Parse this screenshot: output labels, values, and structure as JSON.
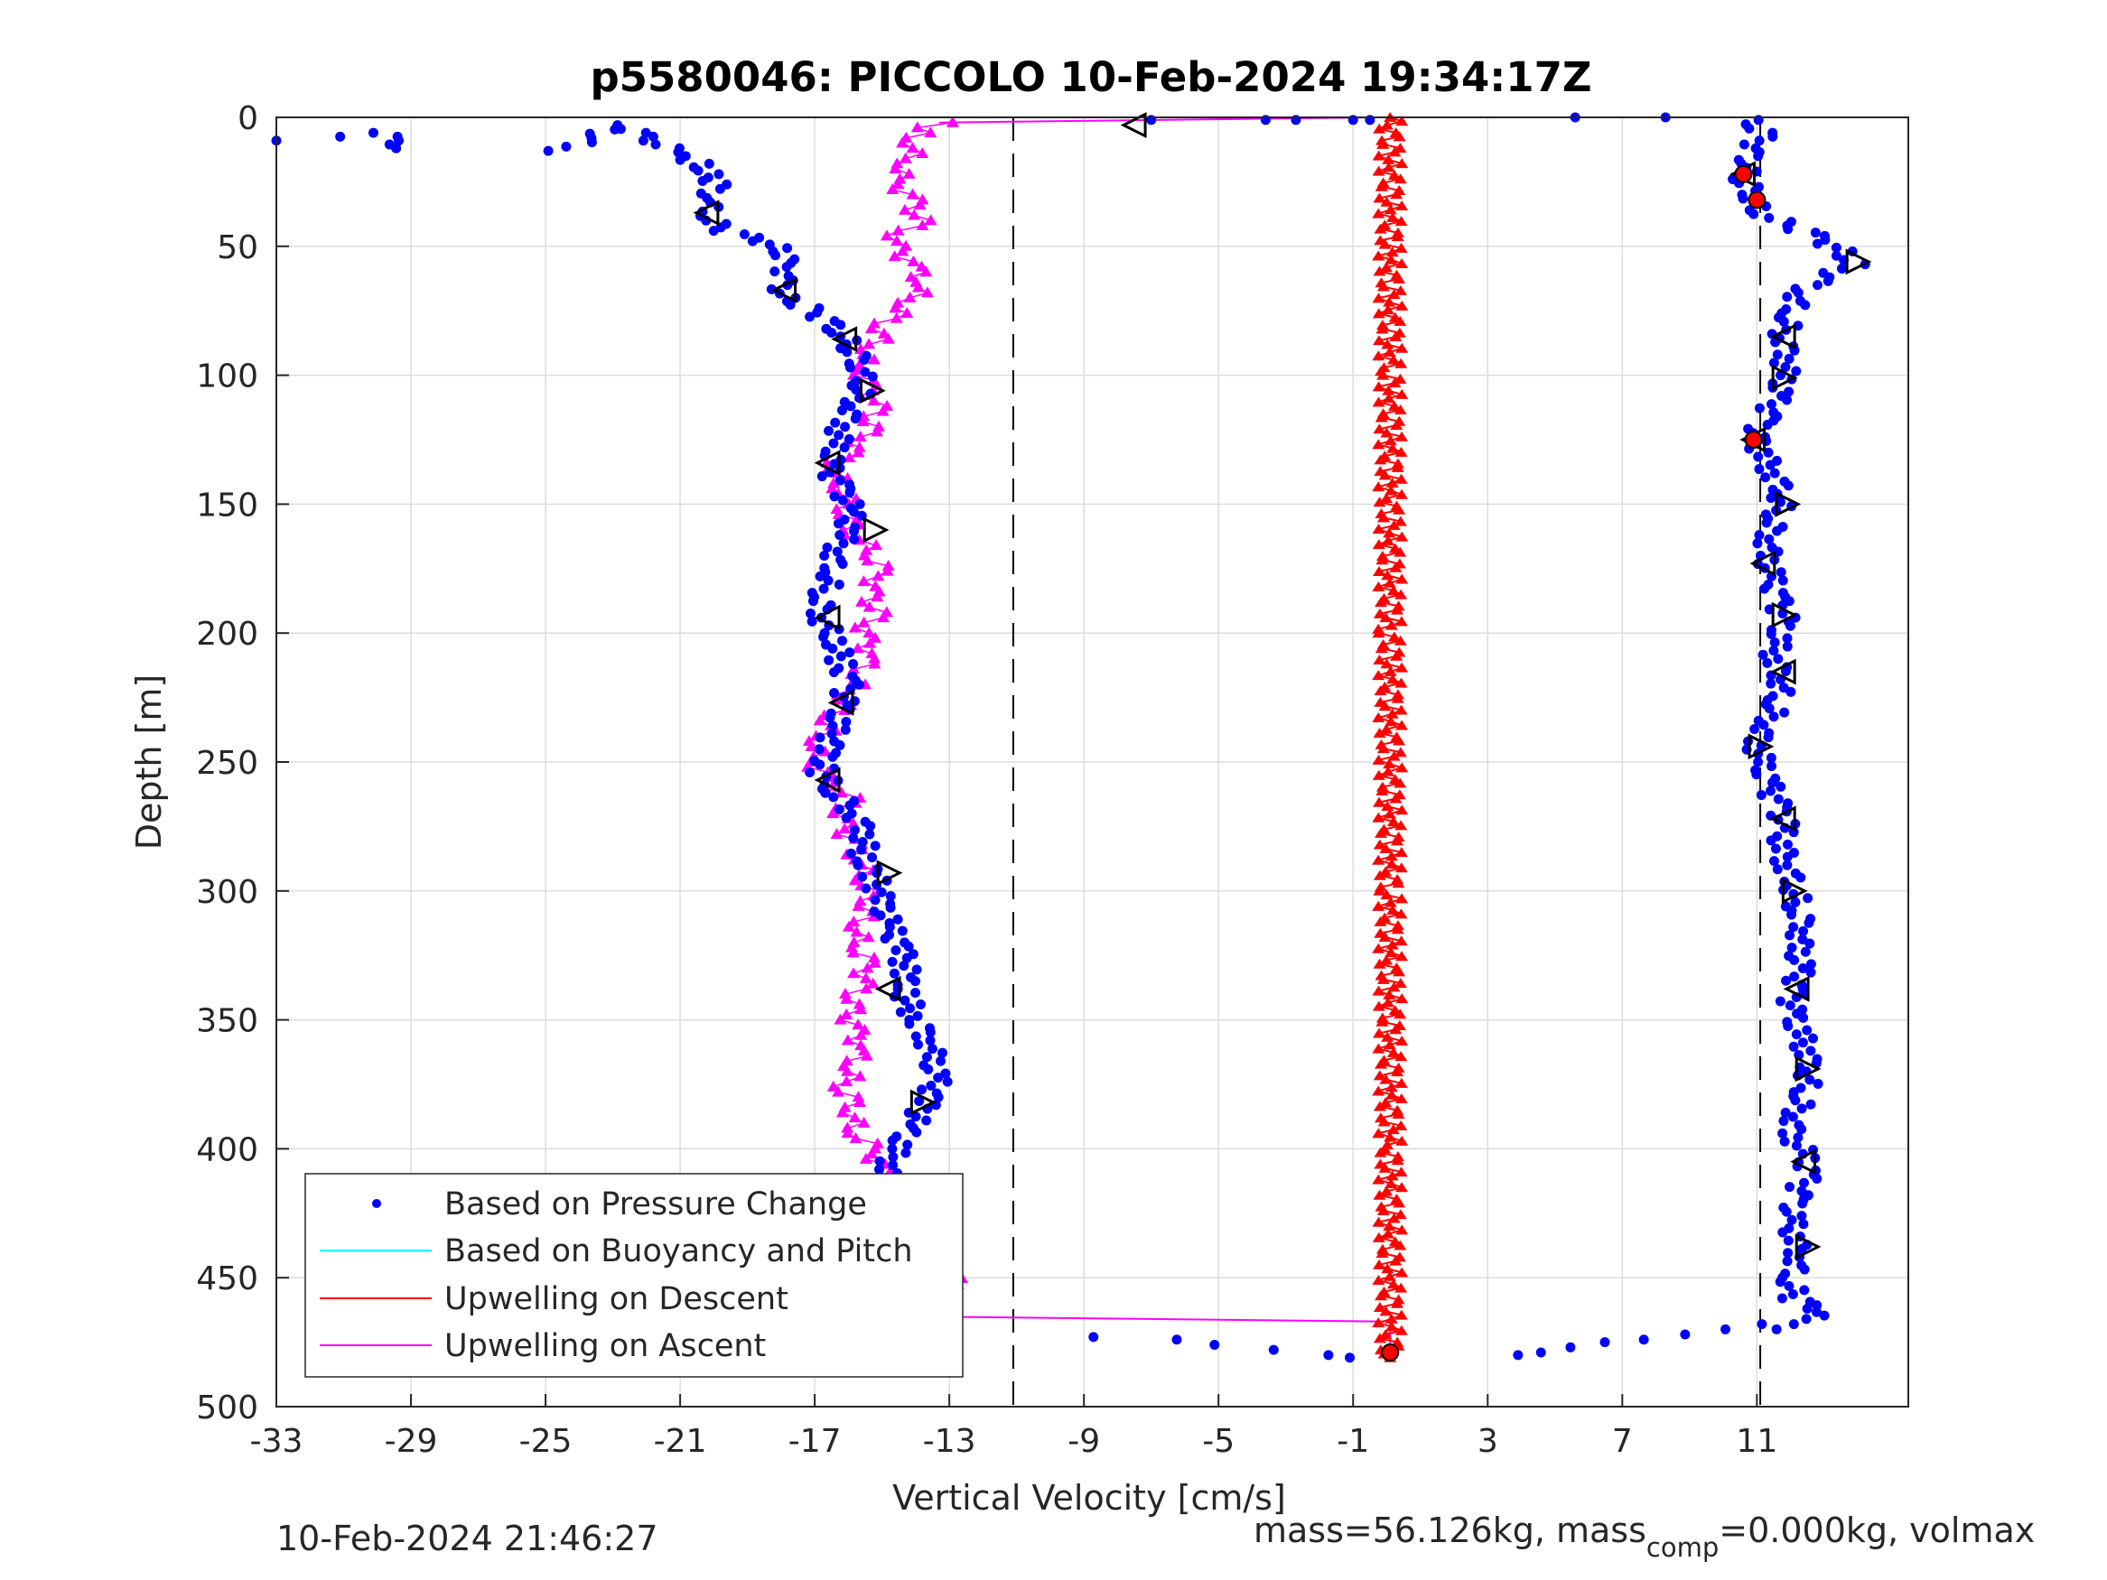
{
  "chart_data": {
    "type": "scatter",
    "title": "p5580046: PICCOLO 10-Feb-2024 19:34:17Z",
    "xlabel": "Vertical Velocity [cm/s]",
    "ylabel": "Depth [m]",
    "xlim": [
      -33,
      15.5
    ],
    "ylim": [
      0,
      500
    ],
    "y_reversed": true,
    "grid": true,
    "x_ticks": [
      "-33",
      "-29",
      "-25",
      "-21",
      "-17",
      "-13",
      "-9",
      "-5",
      "-1",
      "3",
      "7",
      "11"
    ],
    "x_tick_values": [
      -33,
      -29,
      -25,
      -21,
      -17,
      -13,
      -9,
      -5,
      -1,
      3,
      7,
      11
    ],
    "y_ticks": [
      "0",
      "50",
      "100",
      "150",
      "200",
      "250",
      "300",
      "350",
      "400",
      "450",
      "500"
    ],
    "y_tick_values": [
      0,
      50,
      100,
      150,
      200,
      250,
      300,
      350,
      400,
      450,
      500
    ],
    "legend_position": "bottom-left",
    "reference_lines_x": [
      -11.1,
      11.1
    ],
    "series": [
      {
        "name": "Based on Pressure Change",
        "color": "#0000ff",
        "marker": "dot",
        "descent": [
          [
            -33,
            9
          ],
          [
            -29.9,
            6
          ],
          [
            -29.1,
            12
          ],
          [
            -24.6,
            13
          ],
          [
            -22.7,
            3
          ],
          [
            -20.9,
            15
          ],
          [
            -20.4,
            18
          ],
          [
            -20.2,
            22
          ],
          [
            -19.9,
            26
          ],
          [
            -20.2,
            33
          ],
          [
            -20.1,
            40
          ],
          [
            -19.7,
            44
          ],
          [
            -18.5,
            48
          ],
          [
            -18.0,
            52
          ],
          [
            -17.8,
            58
          ],
          [
            -18.0,
            65
          ],
          [
            -17.9,
            70
          ],
          [
            -17.2,
            74
          ],
          [
            -16.6,
            79
          ],
          [
            -16.2,
            85
          ],
          [
            -15.8,
            91
          ],
          [
            -15.6,
            97
          ],
          [
            -15.6,
            104
          ],
          [
            -15.8,
            112
          ],
          [
            -16.2,
            120
          ],
          [
            -16.4,
            128
          ],
          [
            -16.6,
            136
          ],
          [
            -16.2,
            144
          ],
          [
            -15.9,
            153
          ],
          [
            -16.1,
            162
          ],
          [
            -16.4,
            170
          ],
          [
            -16.5,
            178
          ],
          [
            -16.8,
            186
          ],
          [
            -16.8,
            194
          ],
          [
            -16.4,
            203
          ],
          [
            -16.2,
            212
          ],
          [
            -16.0,
            220
          ],
          [
            -16.2,
            228
          ],
          [
            -16.4,
            236
          ],
          [
            -16.6,
            245
          ],
          [
            -16.8,
            254
          ],
          [
            -16.4,
            262
          ],
          [
            -15.8,
            270
          ],
          [
            -15.5,
            278
          ],
          [
            -15.6,
            287
          ],
          [
            -15.2,
            296
          ],
          [
            -15.0,
            305
          ],
          [
            -14.8,
            314
          ],
          [
            -14.4,
            323
          ],
          [
            -14.3,
            332
          ],
          [
            -14.3,
            341
          ],
          [
            -14.0,
            350
          ],
          [
            -13.6,
            358
          ],
          [
            -13.5,
            366
          ],
          [
            -13.4,
            374
          ],
          [
            -13.7,
            383
          ],
          [
            -14.2,
            392
          ],
          [
            -14.6,
            400
          ],
          [
            -14.8,
            408
          ],
          [
            -14.7,
            417
          ],
          [
            -14.5,
            425
          ],
          [
            -14.3,
            434
          ],
          [
            -14.2,
            443
          ],
          [
            -14.3,
            452
          ],
          [
            -14.6,
            461
          ],
          [
            -14.8,
            469
          ],
          [
            -13.3,
            472
          ],
          [
            -8.5,
            473
          ],
          [
            -5.9,
            474
          ],
          [
            -4.8,
            476
          ],
          [
            -3.2,
            478
          ],
          [
            -1.8,
            480
          ],
          [
            -1.1,
            481
          ]
        ],
        "ascent": [
          [
            3.9,
            480
          ],
          [
            4.8,
            479
          ],
          [
            5.8,
            477
          ],
          [
            6.8,
            475
          ],
          [
            7.8,
            474
          ],
          [
            8.8,
            472
          ],
          [
            9.8,
            470
          ],
          [
            10.8,
            468
          ],
          [
            11.3,
            470
          ],
          [
            12.0,
            468
          ],
          [
            12.6,
            466
          ],
          [
            12.8,
            462
          ],
          [
            12.1,
            458
          ],
          [
            12.0,
            450
          ],
          [
            12.3,
            442
          ],
          [
            12.1,
            434
          ],
          [
            12.0,
            426
          ],
          [
            12.2,
            418
          ],
          [
            12.5,
            410
          ],
          [
            12.4,
            402
          ],
          [
            12.0,
            394
          ],
          [
            12.2,
            386
          ],
          [
            12.4,
            378
          ],
          [
            12.6,
            370
          ],
          [
            12.5,
            362
          ],
          [
            12.2,
            354
          ],
          [
            12.0,
            346
          ],
          [
            12.1,
            338
          ],
          [
            12.3,
            330
          ],
          [
            12.2,
            322
          ],
          [
            12.4,
            314
          ],
          [
            12.2,
            306
          ],
          [
            12.1,
            298
          ],
          [
            11.9,
            290
          ],
          [
            11.7,
            282
          ],
          [
            11.8,
            274
          ],
          [
            11.6,
            266
          ],
          [
            11.3,
            258
          ],
          [
            11.1,
            250
          ],
          [
            11.0,
            242
          ],
          [
            11.4,
            234
          ],
          [
            11.6,
            226
          ],
          [
            11.8,
            218
          ],
          [
            11.5,
            210
          ],
          [
            11.6,
            202
          ],
          [
            11.8,
            194
          ],
          [
            11.6,
            186
          ],
          [
            11.4,
            178
          ],
          [
            11.3,
            170
          ],
          [
            11.4,
            162
          ],
          [
            11.6,
            154
          ],
          [
            11.8,
            146
          ],
          [
            11.5,
            138
          ],
          [
            11.1,
            130
          ],
          [
            10.9,
            124
          ],
          [
            11.3,
            116
          ],
          [
            11.6,
            108
          ],
          [
            11.8,
            100
          ],
          [
            11.9,
            92
          ],
          [
            11.8,
            84
          ],
          [
            12.0,
            76
          ],
          [
            12.3,
            68
          ],
          [
            13.0,
            62
          ],
          [
            13.9,
            57
          ],
          [
            13.5,
            52
          ],
          [
            12.8,
            46
          ],
          [
            11.9,
            42
          ],
          [
            11.0,
            36
          ],
          [
            10.9,
            30
          ],
          [
            10.6,
            24
          ],
          [
            10.7,
            18
          ],
          [
            10.9,
            12
          ],
          [
            11.2,
            6
          ],
          [
            10.7,
            1
          ],
          [
            8.0,
            0
          ],
          [
            5.6,
            0
          ]
        ],
        "surface": [
          [
            -7.0,
            1
          ],
          [
            -3.6,
            1
          ],
          [
            -2.7,
            1
          ],
          [
            -1.0,
            1
          ],
          [
            -0.5,
            1
          ]
        ]
      },
      {
        "name": "Based on Buoyancy and Pitch",
        "color": "#00ffff",
        "marker": "line",
        "points": []
      },
      {
        "name": "Upwelling on Descent",
        "color": "#ff0000",
        "marker": "triangle",
        "points": [
          [
            0.1,
            0
          ],
          [
            0.1,
            100
          ],
          [
            0.1,
            200
          ],
          [
            0.1,
            300
          ],
          [
            0.1,
            400
          ],
          [
            0.1,
            481
          ]
        ]
      },
      {
        "name": "Upwelling on Ascent",
        "color": "#ff00ff",
        "marker": "triangle",
        "points": [
          [
            -14.2,
            465
          ],
          [
            -13.4,
            462
          ],
          [
            -12.8,
            455
          ],
          [
            -13.0,
            448
          ],
          [
            -13.5,
            440
          ],
          [
            -14.0,
            432
          ],
          [
            -14.6,
            424
          ],
          [
            -14.2,
            416
          ],
          [
            -15.0,
            408
          ],
          [
            -15.3,
            400
          ],
          [
            -15.9,
            392
          ],
          [
            -15.8,
            384
          ],
          [
            -16.1,
            376
          ],
          [
            -15.9,
            368
          ],
          [
            -15.6,
            360
          ],
          [
            -15.9,
            352
          ],
          [
            -16.0,
            344
          ],
          [
            -15.6,
            336
          ],
          [
            -15.4,
            328
          ],
          [
            -15.8,
            320
          ],
          [
            -15.6,
            312
          ],
          [
            -15.3,
            304
          ],
          [
            -15.5,
            296
          ],
          [
            -15.7,
            288
          ],
          [
            -15.9,
            280
          ],
          [
            -16.3,
            272
          ],
          [
            -16.0,
            264
          ],
          [
            -16.7,
            256
          ],
          [
            -17.1,
            248
          ],
          [
            -16.8,
            240
          ],
          [
            -16.4,
            232
          ],
          [
            -16.0,
            224
          ],
          [
            -15.7,
            216
          ],
          [
            -15.3,
            208
          ],
          [
            -15.6,
            200
          ],
          [
            -15.2,
            192
          ],
          [
            -15.4,
            184
          ],
          [
            -15.0,
            176
          ],
          [
            -15.4,
            168
          ],
          [
            -15.9,
            160
          ],
          [
            -16.0,
            152
          ],
          [
            -16.2,
            144
          ],
          [
            -16.5,
            136
          ],
          [
            -15.8,
            128
          ],
          [
            -15.4,
            120
          ],
          [
            -15.2,
            112
          ],
          [
            -15.4,
            104
          ],
          [
            -15.7,
            96
          ],
          [
            -15.2,
            88
          ],
          [
            -14.9,
            80
          ],
          [
            -14.2,
            72
          ],
          [
            -13.8,
            64
          ],
          [
            -14.1,
            56
          ],
          [
            -14.8,
            48
          ],
          [
            -13.9,
            40
          ],
          [
            -14.1,
            32
          ],
          [
            -14.6,
            24
          ],
          [
            -14.2,
            16
          ],
          [
            -14.0,
            8
          ],
          [
            -13.6,
            4
          ],
          [
            -12.9,
            2
          ]
        ]
      }
    ],
    "transition_lines": [
      {
        "color": "#ff00ff",
        "points": [
          [
            -13.3,
            2
          ],
          [
            -0.2,
            0
          ],
          [
            0.1,
            0
          ]
        ]
      },
      {
        "color": "#ff00ff",
        "points": [
          [
            -14.2,
            465
          ],
          [
            0.1,
            467
          ],
          [
            0.1,
            481
          ]
        ]
      }
    ],
    "open_triangle_markers": [
      {
        "x": -7.5,
        "y": 3,
        "dir": "left"
      },
      {
        "x": -20.2,
        "y": 37,
        "dir": "left"
      },
      {
        "x": -17.9,
        "y": 67,
        "dir": "left"
      },
      {
        "x": -16.1,
        "y": 86,
        "dir": "left"
      },
      {
        "x": -15.3,
        "y": 106,
        "dir": "right"
      },
      {
        "x": -16.6,
        "y": 134,
        "dir": "left"
      },
      {
        "x": -15.2,
        "y": 160,
        "dir": "right"
      },
      {
        "x": -16.6,
        "y": 194,
        "dir": "left"
      },
      {
        "x": -16.2,
        "y": 227,
        "dir": "left"
      },
      {
        "x": -16.6,
        "y": 257,
        "dir": "left"
      },
      {
        "x": -14.8,
        "y": 293,
        "dir": "right"
      },
      {
        "x": -14.8,
        "y": 338,
        "dir": "left"
      },
      {
        "x": -13.8,
        "y": 382,
        "dir": "right"
      },
      {
        "x": -14.9,
        "y": 425,
        "dir": "left"
      },
      {
        "x": -14.5,
        "y": 462,
        "dir": "right"
      },
      {
        "x": 10.6,
        "y": 22,
        "dir": "left"
      },
      {
        "x": 14.0,
        "y": 56,
        "dir": "right"
      },
      {
        "x": 11.8,
        "y": 85,
        "dir": "left"
      },
      {
        "x": 11.8,
        "y": 101,
        "dir": "right"
      },
      {
        "x": 10.9,
        "y": 125,
        "dir": "left"
      },
      {
        "x": 11.9,
        "y": 150,
        "dir": "right"
      },
      {
        "x": 11.2,
        "y": 173,
        "dir": "left"
      },
      {
        "x": 11.8,
        "y": 193,
        "dir": "right"
      },
      {
        "x": 11.8,
        "y": 215,
        "dir": "left"
      },
      {
        "x": 11.1,
        "y": 244,
        "dir": "right"
      },
      {
        "x": 11.8,
        "y": 272,
        "dir": "left"
      },
      {
        "x": 12.1,
        "y": 300,
        "dir": "right"
      },
      {
        "x": 12.2,
        "y": 338,
        "dir": "left"
      },
      {
        "x": 12.5,
        "y": 369,
        "dir": "right"
      },
      {
        "x": 12.4,
        "y": 405,
        "dir": "left"
      },
      {
        "x": 12.5,
        "y": 438,
        "dir": "right"
      }
    ],
    "red_markers": [
      {
        "x": -14.8,
        "y": 470
      },
      {
        "x": 0.1,
        "y": 479
      },
      {
        "x": 10.6,
        "y": 22
      },
      {
        "x": 10.9,
        "y": 125
      },
      {
        "x": 11.0,
        "y": 32
      }
    ]
  },
  "footer": {
    "timestamp": "10-Feb-2024 21:46:27",
    "mass_text": "mass=56.126kg, mass",
    "mass_sub": "comp",
    "mass_rest": "=0.000kg, volmax"
  }
}
